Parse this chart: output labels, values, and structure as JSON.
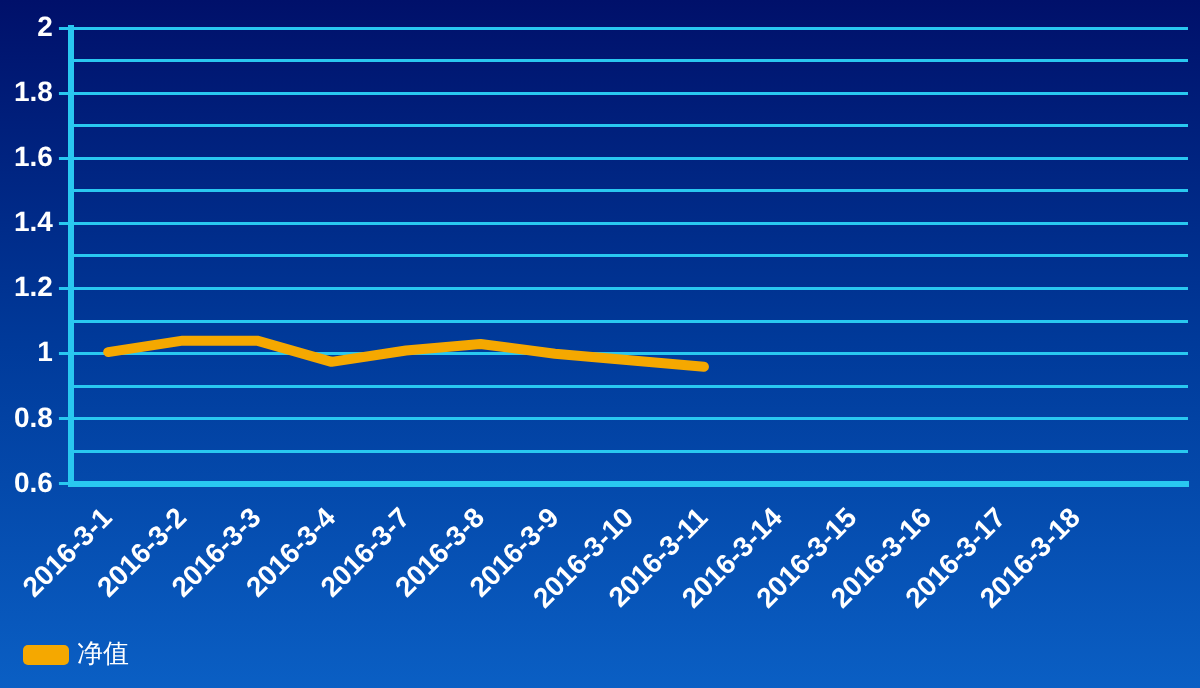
{
  "chart_data": {
    "type": "line",
    "categories": [
      "2016-3-1",
      "2016-3-2",
      "2016-3-3",
      "2016-3-4",
      "2016-3-7",
      "2016-3-8",
      "2016-3-9",
      "2016-3-10",
      "2016-3-11",
      "2016-3-14",
      "2016-3-15",
      "2016-3-16",
      "2016-3-17",
      "2016-3-18",
      null
    ],
    "series": [
      {
        "name": "净值",
        "color": "#f5a800",
        "values": [
          1.005,
          1.04,
          1.04,
          0.975,
          1.01,
          1.03,
          1.0,
          0.98,
          0.96,
          null,
          null,
          null,
          null,
          null,
          null
        ]
      }
    ],
    "ylim": [
      0.6,
      2
    ],
    "yticks": [
      0.6,
      {
        "value": 0.7,
        "label": null
      },
      0.8,
      {
        "value": 0.9,
        "label": null
      },
      1,
      {
        "value": 1.1,
        "label": null
      },
      1.2,
      {
        "value": 1.3,
        "label": null
      },
      1.4,
      {
        "value": 1.5,
        "label": null
      },
      1.6,
      {
        "value": 1.7,
        "label": null
      },
      1.8,
      {
        "value": 1.9,
        "label": null
      },
      2
    ],
    "grid": "y",
    "legend": "bottom left",
    "marker": "none",
    "line_style": "solid"
  }
}
